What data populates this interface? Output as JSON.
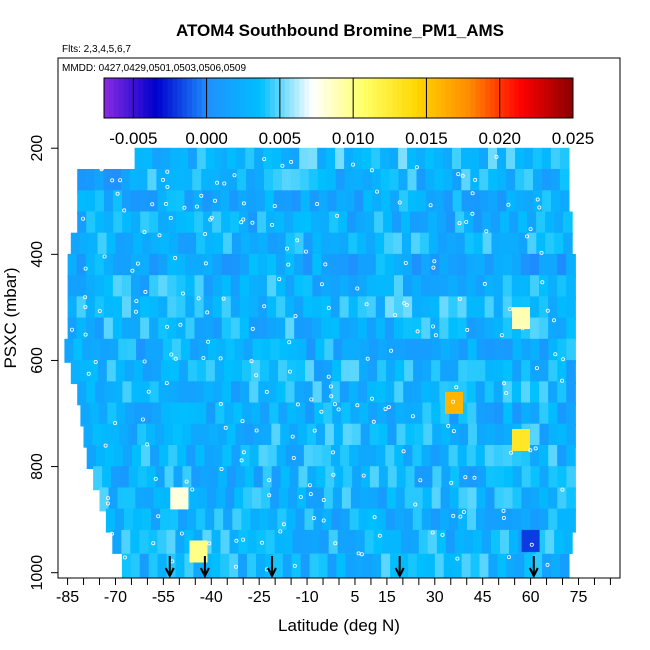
{
  "chart_data": {
    "type": "heatmap",
    "title": "ATOM4 Southbound Bromine_PM1_AMS",
    "flights_label": "Flts: 2,3,4,5,6,7",
    "dates_label": "MMDD: 0427,0429,0501,0503,0506,0509",
    "xlabel": "Latitude (deg N)",
    "ylabel": "PSXC (mbar)",
    "xlim": [
      -88,
      88
    ],
    "ylim": [
      1010,
      30
    ],
    "x_ticks": [
      -85,
      -70,
      -55,
      -40,
      -25,
      -10,
      5,
      15,
      30,
      45,
      60,
      75
    ],
    "x_ticks_labels": [
      "-85",
      "-70",
      "-55",
      "-40",
      "-25",
      "-10",
      "5",
      "15",
      "30",
      "45",
      "60",
      "75"
    ],
    "x_minor_ticks": [
      -80,
      -75,
      -65,
      -60,
      -50,
      -45,
      -35,
      -30,
      -20,
      -15,
      -5,
      0,
      10,
      20,
      25,
      35,
      40,
      50,
      55,
      65,
      70,
      80,
      85
    ],
    "y_ticks": [
      200,
      400,
      600,
      800,
      1000
    ],
    "y_ticks_labels": [
      "200",
      "400",
      "600",
      "800",
      "1000"
    ],
    "colorbar": {
      "min": -0.007,
      "max": 0.025,
      "ticks": [
        -0.005,
        0.0,
        0.005,
        0.01,
        0.015,
        0.02,
        0.025
      ],
      "tick_labels": [
        "-0.005",
        "0.000",
        "0.005",
        "0.010",
        "0.015",
        "0.020",
        "0.025"
      ],
      "colors": [
        "#8a2be2",
        "#0000cd",
        "#1e90ff",
        "#00bfff",
        "#ffffff",
        "#ffff66",
        "#ffd700",
        "#ff8c00",
        "#ff0000",
        "#8b0000"
      ]
    },
    "grid": false,
    "legend": "colorbar top",
    "arrows_latitude": [
      -53,
      -42,
      -21,
      19,
      61
    ],
    "rows": [
      {
        "p": 220,
        "lat_min": -64,
        "lat_max": -25,
        "value": 0.003
      },
      {
        "p": 220,
        "lat_min": -35,
        "lat_max": 72,
        "value": 0.0035
      },
      {
        "p": 260,
        "lat_min": -82,
        "lat_max": -60,
        "value": 0.002
      },
      {
        "p": 260,
        "lat_min": -60,
        "lat_max": 72,
        "value": 0.003
      },
      {
        "p": 300,
        "lat_min": -82,
        "lat_max": 72,
        "value": 0.0025
      },
      {
        "p": 340,
        "lat_min": -82,
        "lat_max": 73,
        "value": 0.0025
      },
      {
        "p": 380,
        "lat_min": -84,
        "lat_max": 73,
        "value": 0.003
      },
      {
        "p": 420,
        "lat_min": -85,
        "lat_max": 74,
        "value": 0.002
      },
      {
        "p": 460,
        "lat_min": -85,
        "lat_max": 74,
        "value": 0.003
      },
      {
        "p": 500,
        "lat_min": -85,
        "lat_max": 74,
        "value": 0.0035
      },
      {
        "p": 540,
        "lat_min": -85,
        "lat_max": 74,
        "value": 0.003
      },
      {
        "p": 580,
        "lat_min": -86,
        "lat_max": 74,
        "value": 0.0025
      },
      {
        "p": 620,
        "lat_min": -84,
        "lat_max": 74,
        "value": 0.003
      },
      {
        "p": 660,
        "lat_min": -82,
        "lat_max": 74,
        "value": 0.003
      },
      {
        "p": 700,
        "lat_min": -81,
        "lat_max": 74,
        "value": 0.0025
      },
      {
        "p": 740,
        "lat_min": -80,
        "lat_max": 74,
        "value": 0.003
      },
      {
        "p": 780,
        "lat_min": -79,
        "lat_max": 74,
        "value": 0.003
      },
      {
        "p": 820,
        "lat_min": -77,
        "lat_max": 74,
        "value": 0.0028
      },
      {
        "p": 860,
        "lat_min": -75,
        "lat_max": 74,
        "value": 0.003
      },
      {
        "p": 900,
        "lat_min": -73,
        "lat_max": 74,
        "value": 0.0028
      },
      {
        "p": 940,
        "lat_min": -71,
        "lat_max": 73,
        "value": 0.003
      },
      {
        "p": 985,
        "lat_min": -68,
        "lat_max": 72,
        "value": 0.003
      }
    ],
    "hotspots": [
      {
        "lat": 36,
        "p": 680,
        "value": 0.016
      },
      {
        "lat": 57,
        "p": 750,
        "value": 0.013
      },
      {
        "lat": 57,
        "p": 520,
        "value": 0.009
      },
      {
        "lat": 60,
        "p": 940,
        "value": -0.002
      },
      {
        "lat": -44,
        "p": 960,
        "value": 0.01
      },
      {
        "lat": -50,
        "p": 860,
        "value": 0.008
      }
    ]
  }
}
